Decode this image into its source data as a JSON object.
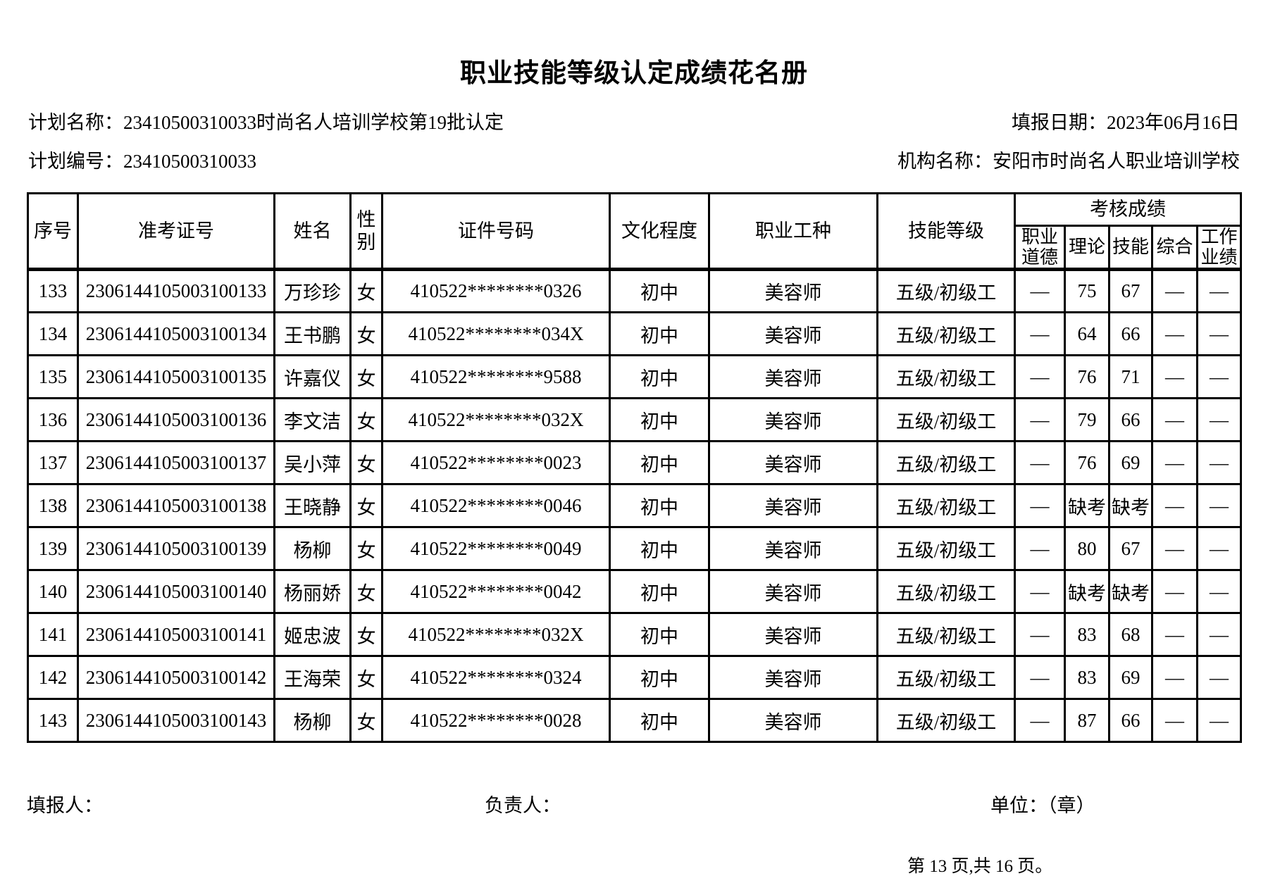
{
  "title": "职业技能等级认定成绩花名册",
  "meta": {
    "plan_name_label": "计划名称：",
    "plan_name_value": "23410500310033时尚名人培训学校第19批认定",
    "report_date_label": "填报日期：",
    "report_date_value": "2023年06月16日",
    "plan_code_label": "计划编号：",
    "plan_code_value": "23410500310033",
    "org_name_label": "机构名称：",
    "org_name_value": "安阳市时尚名人职业培训学校"
  },
  "colors": {
    "text": "#000000",
    "border": "#000000",
    "background": "#ffffff"
  },
  "table": {
    "headers": {
      "index": "序号",
      "admission_no": "准考证号",
      "name": "姓名",
      "gender": "性别",
      "id_number": "证件号码",
      "education": "文化程度",
      "occupation": "职业工种",
      "skill_level": "技能等级",
      "scores_group": "考核成绩",
      "score_ethics": "职业道德",
      "score_theory": "理论",
      "score_skill": "技能",
      "score_comprehensive": "综合",
      "score_work": "工作业绩"
    },
    "column_names": [
      "index",
      "admission-no",
      "name",
      "gender",
      "id-number",
      "education",
      "occupation",
      "skill-level",
      "score-ethics",
      "score-theory",
      "score-skill",
      "score-comprehensive",
      "score-work"
    ],
    "rows": [
      [
        "133",
        "2306144105003100133",
        "万珍珍",
        "女",
        "410522********0326",
        "初中",
        "美容师",
        "五级/初级工",
        "—",
        "75",
        "67",
        "—",
        "—"
      ],
      [
        "134",
        "2306144105003100134",
        "王书鹏",
        "女",
        "410522********034X",
        "初中",
        "美容师",
        "五级/初级工",
        "—",
        "64",
        "66",
        "—",
        "—"
      ],
      [
        "135",
        "2306144105003100135",
        "许嘉仪",
        "女",
        "410522********9588",
        "初中",
        "美容师",
        "五级/初级工",
        "—",
        "76",
        "71",
        "—",
        "—"
      ],
      [
        "136",
        "2306144105003100136",
        "李文洁",
        "女",
        "410522********032X",
        "初中",
        "美容师",
        "五级/初级工",
        "—",
        "79",
        "66",
        "—",
        "—"
      ],
      [
        "137",
        "2306144105003100137",
        "吴小萍",
        "女",
        "410522********0023",
        "初中",
        "美容师",
        "五级/初级工",
        "—",
        "76",
        "69",
        "—",
        "—"
      ],
      [
        "138",
        "2306144105003100138",
        "王晓静",
        "女",
        "410522********0046",
        "初中",
        "美容师",
        "五级/初级工",
        "—",
        "缺考",
        "缺考",
        "—",
        "—"
      ],
      [
        "139",
        "2306144105003100139",
        "杨柳",
        "女",
        "410522********0049",
        "初中",
        "美容师",
        "五级/初级工",
        "—",
        "80",
        "67",
        "—",
        "—"
      ],
      [
        "140",
        "2306144105003100140",
        "杨丽娇",
        "女",
        "410522********0042",
        "初中",
        "美容师",
        "五级/初级工",
        "—",
        "缺考",
        "缺考",
        "—",
        "—"
      ],
      [
        "141",
        "2306144105003100141",
        "姬忠波",
        "女",
        "410522********032X",
        "初中",
        "美容师",
        "五级/初级工",
        "—",
        "83",
        "68",
        "—",
        "—"
      ],
      [
        "142",
        "2306144105003100142",
        "王海荣",
        "女",
        "410522********0324",
        "初中",
        "美容师",
        "五级/初级工",
        "—",
        "83",
        "69",
        "—",
        "—"
      ],
      [
        "143",
        "2306144105003100143",
        "杨柳",
        "女",
        "410522********0028",
        "初中",
        "美容师",
        "五级/初级工",
        "—",
        "87",
        "66",
        "—",
        "—"
      ]
    ]
  },
  "footer": {
    "filler_label": "填报人：",
    "responsible_label": "负责人：",
    "unit_label": "单位：（章）",
    "page_info": "第 13 页,共 16 页。"
  }
}
